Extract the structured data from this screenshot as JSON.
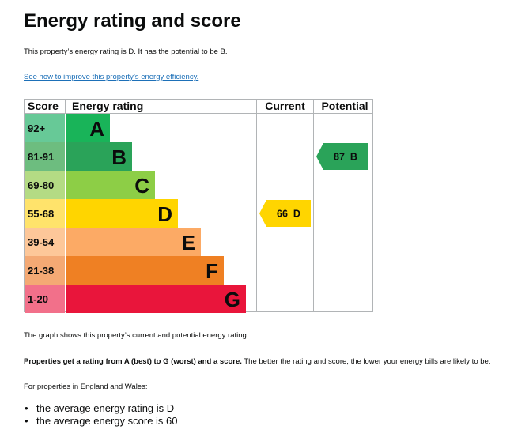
{
  "page": {
    "title": "Energy rating and score",
    "summary": "This property’s energy rating is D. It has the potential to be B.",
    "improve_link": "See how to improve this property’s energy efficiency."
  },
  "chart": {
    "headers": {
      "score": "Score",
      "rating": "Energy rating",
      "current": "Current",
      "potential": "Potential"
    },
    "bands": [
      {
        "range": "92+",
        "letter": "A",
        "color": "#19b459",
        "score_color": "#67c997"
      },
      {
        "range": "81-91",
        "letter": "B",
        "color": "#2aa359",
        "score_color": "#6dbd7f"
      },
      {
        "range": "69-80",
        "letter": "C",
        "color": "#8dce46",
        "score_color": "#b4db84"
      },
      {
        "range": "55-68",
        "letter": "D",
        "color": "#ffd500",
        "score_color": "#ffe36b"
      },
      {
        "range": "39-54",
        "letter": "E",
        "color": "#fcaa65",
        "score_color": "#fdc799"
      },
      {
        "range": "21-38",
        "letter": "F",
        "color": "#ef8023",
        "score_color": "#f4a974"
      },
      {
        "range": "1-20",
        "letter": "G",
        "color": "#e9153b",
        "score_color": "#f2708a"
      }
    ],
    "current": {
      "label": "66  D",
      "score": 66,
      "letter": "D",
      "color": "#ffd500"
    },
    "potential": {
      "label": "87  B",
      "score": 87,
      "letter": "B",
      "color": "#2aa359"
    }
  },
  "notes": {
    "graph_note": "The graph shows this property’s current and potential energy rating.",
    "rating_bold": "Properties get a rating from A (best) to G (worst) and a score.",
    "rating_rest": " The better the rating and score, the lower your energy bills are likely to be.",
    "region_intro": "For properties in England and Wales:",
    "bullet": "•",
    "averages": [
      "the average energy rating is D",
      "the average energy score is 60"
    ]
  }
}
